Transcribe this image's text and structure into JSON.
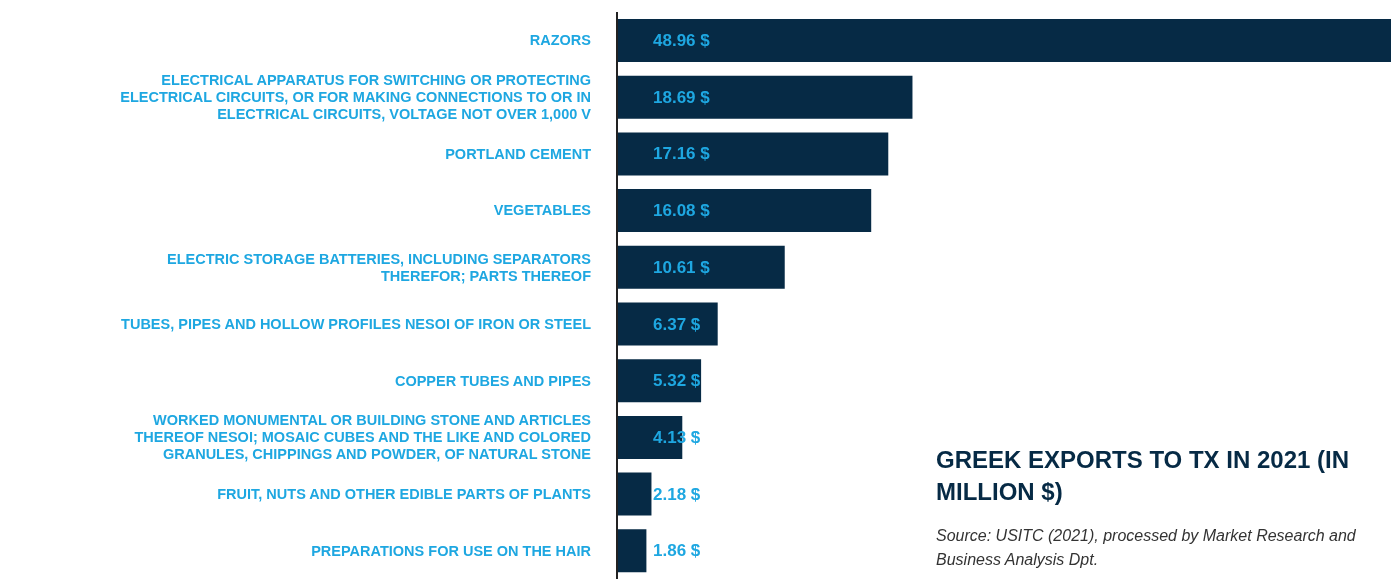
{
  "chart_data": {
    "type": "bar",
    "orientation": "horizontal",
    "title": "GREEK EXPORTS TO TX IN 2021 (IN MILLION $)",
    "categories": [
      "RAZORS",
      "ELECTRICAL APPARATUS FOR SWITCHING OR PROTECTING ELECTRICAL CIRCUITS, OR FOR MAKING CONNECTIONS TO OR IN ELECTRICAL CIRCUITS, VOLTAGE NOT OVER 1,000 V",
      "PORTLAND CEMENT",
      "VEGETABLES",
      "ELECTRIC STORAGE BATTERIES, INCLUDING SEPARATORS THEREFOR; PARTS THEREOF",
      "TUBES, PIPES AND HOLLOW PROFILES NESOI OF IRON OR STEEL",
      "COPPER TUBES AND PIPES",
      "WORKED MONUMENTAL OR BUILDING STONE AND ARTICLES THEREOF NESOI; MOSAIC CUBES AND THE LIKE AND COLORED GRANULES, CHIPPINGS AND POWDER, OF NATURAL STONE",
      "FRUIT, NUTS AND OTHER EDIBLE PARTS OF PLANTS",
      "PREPARATIONS FOR USE ON THE HAIR"
    ],
    "values": [
      48.96,
      18.69,
      17.16,
      16.08,
      10.61,
      6.37,
      5.32,
      4.13,
      2.18,
      1.86
    ],
    "value_labels": [
      "48.96 $",
      "18.69 $",
      "17.16 $",
      "16.08 $",
      "10.61 $",
      "6.37 $",
      "5.32 $",
      "4.13 $",
      "2.18 $",
      "1.86 $"
    ],
    "color": "#062a45",
    "annotations": [
      "Source: USITC (2021), processed by Market Research and Business Analysis Dpt."
    ]
  }
}
